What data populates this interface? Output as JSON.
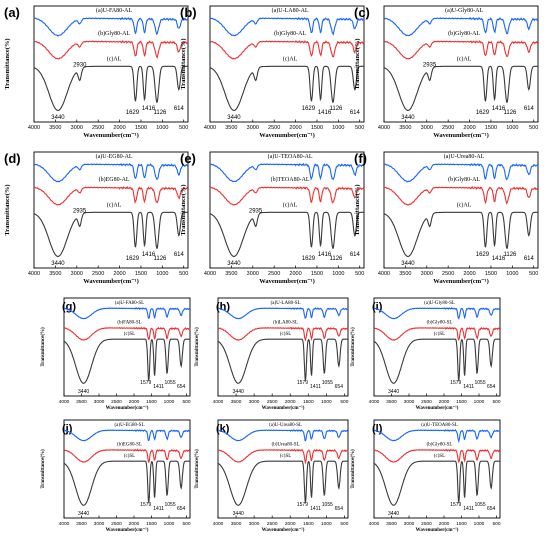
{
  "colors": {
    "top": "#1565ff",
    "middle": "#ef3030",
    "bottom": "#3a3a3a"
  },
  "axes": {
    "xlabel_top": "Wavenumber(cm⁻¹)",
    "ylabel_top": "Transmittance(%)",
    "xlabel_bottom": "Wavenumber(cm⁻¹)",
    "ylabel_bottom": "Transmittance(%)",
    "xticks": [
      "4000",
      "3500",
      "3000",
      "2500",
      "2000",
      "1500",
      "1000",
      "500"
    ]
  },
  "chart_data": [
    {
      "type": "line",
      "panel": "(a)",
      "xlim": [
        4000,
        400
      ],
      "series": [
        {
          "name": "(a)U-FA80-AL",
          "color": "#1565ff"
        },
        {
          "name": "(b)Gly80-AL",
          "color": "#ef3030"
        },
        {
          "name": "(c)AL",
          "color": "#3a3a3a"
        }
      ],
      "annotations": [
        "3440",
        "2930",
        "1629",
        "1416",
        "1126",
        "614"
      ]
    },
    {
      "type": "line",
      "panel": "(b)",
      "xlim": [
        4000,
        400
      ],
      "series": [
        {
          "name": "(a)U-LA80-AL",
          "color": "#1565ff"
        },
        {
          "name": "(b)Gly80-AL",
          "color": "#ef3030"
        },
        {
          "name": "(c)AL",
          "color": "#3a3a3a"
        }
      ],
      "annotations": [
        "3440",
        "1629",
        "1416",
        "1126",
        "614"
      ]
    },
    {
      "type": "line",
      "panel": "(c)",
      "xlim": [
        4000,
        400
      ],
      "series": [
        {
          "name": "(a)U-Gly80-AL",
          "color": "#1565ff"
        },
        {
          "name": "(b)Gly80-AL",
          "color": "#ef3030"
        },
        {
          "name": "(c)AL",
          "color": "#3a3a3a"
        }
      ],
      "annotations": [
        "3440",
        "2935",
        "1629",
        "1416",
        "1126",
        "614"
      ]
    },
    {
      "type": "line",
      "panel": "(d)",
      "xlim": [
        4000,
        400
      ],
      "series": [
        {
          "name": "(a)U-EG80-AL",
          "color": "#1565ff"
        },
        {
          "name": "(b)EG80-AL",
          "color": "#ef3030"
        },
        {
          "name": "(c)AL",
          "color": "#3a3a3a"
        }
      ],
      "annotations": [
        "3440",
        "2935",
        "1629",
        "1416",
        "1126",
        "614"
      ]
    },
    {
      "type": "line",
      "panel": "(e)",
      "xlim": [
        4000,
        400
      ],
      "series": [
        {
          "name": "(a)U-TEOA80-AL",
          "color": "#1565ff"
        },
        {
          "name": "(b)TEOA80-AL",
          "color": "#ef3030"
        },
        {
          "name": "(c)AL",
          "color": "#3a3a3a"
        }
      ],
      "annotations": [
        "3440",
        "2935",
        "1629",
        "1416",
        "1126",
        "614"
      ]
    },
    {
      "type": "line",
      "panel": "(f)",
      "xlim": [
        4000,
        400
      ],
      "series": [
        {
          "name": "(a)U-Urea80-AL",
          "color": "#1565ff"
        },
        {
          "name": "(b)Gly80-AL",
          "color": "#ef3030"
        },
        {
          "name": "(c)AL",
          "color": "#3a3a3a"
        }
      ],
      "annotations": [
        "3440",
        "1629",
        "1416",
        "1126",
        "614"
      ]
    },
    {
      "type": "line",
      "panel": "(g)",
      "xlim": [
        4000,
        400
      ],
      "series": [
        {
          "name": "(a)U-FA80-SL",
          "color": "#1565ff"
        },
        {
          "name": "(b)FA80-SL",
          "color": "#ef3030"
        },
        {
          "name": "(c)SL",
          "color": "#3a3a3a"
        }
      ],
      "annotations": [
        "3440",
        "1579",
        "1411",
        "1055",
        "654"
      ]
    },
    {
      "type": "line",
      "panel": "(h)",
      "xlim": [
        4000,
        400
      ],
      "series": [
        {
          "name": "(a)U-LA80-SL",
          "color": "#1565ff"
        },
        {
          "name": "(b)LA80-SL",
          "color": "#ef3030"
        },
        {
          "name": "(c)SL",
          "color": "#3a3a3a"
        }
      ],
      "annotations": [
        "3440",
        "1579",
        "1411",
        "1055",
        "654"
      ]
    },
    {
      "type": "line",
      "panel": "(i)",
      "xlim": [
        4000,
        400
      ],
      "series": [
        {
          "name": "(a)U-Gly80-SL",
          "color": "#1565ff"
        },
        {
          "name": "(b)Gly80-SL",
          "color": "#ef3030"
        },
        {
          "name": "(c)SL",
          "color": "#3a3a3a"
        }
      ],
      "annotations": [
        "3440",
        "1579",
        "1411",
        "1055",
        "654"
      ]
    },
    {
      "type": "line",
      "panel": "(j)",
      "xlim": [
        4000,
        400
      ],
      "series": [
        {
          "name": "(a)U-EG80-SL",
          "color": "#1565ff"
        },
        {
          "name": "(b)EG80-SL",
          "color": "#ef3030"
        },
        {
          "name": "(c)SL",
          "color": "#3a3a3a"
        }
      ],
      "annotations": [
        "3440",
        "1579",
        "1411",
        "1055",
        "654"
      ]
    },
    {
      "type": "line",
      "panel": "(k)",
      "xlim": [
        4000,
        400
      ],
      "series": [
        {
          "name": "(a)U-Urea80-SL",
          "color": "#1565ff"
        },
        {
          "name": "(b)Urea80-SL",
          "color": "#ef3030"
        },
        {
          "name": "(c)SL",
          "color": "#3a3a3a"
        }
      ],
      "annotations": [
        "3440",
        "1579",
        "1411",
        "1055",
        "654"
      ]
    },
    {
      "type": "line",
      "panel": "(l)",
      "xlim": [
        4000,
        400
      ],
      "series": [
        {
          "name": "(a)U-TEOA80-SL",
          "color": "#1565ff"
        },
        {
          "name": "(b)Gly80-SL",
          "color": "#ef3030"
        },
        {
          "name": "(c)SL",
          "color": "#3a3a3a"
        }
      ],
      "annotations": [
        "3440",
        "1579",
        "1411",
        "1055",
        "654"
      ]
    }
  ]
}
